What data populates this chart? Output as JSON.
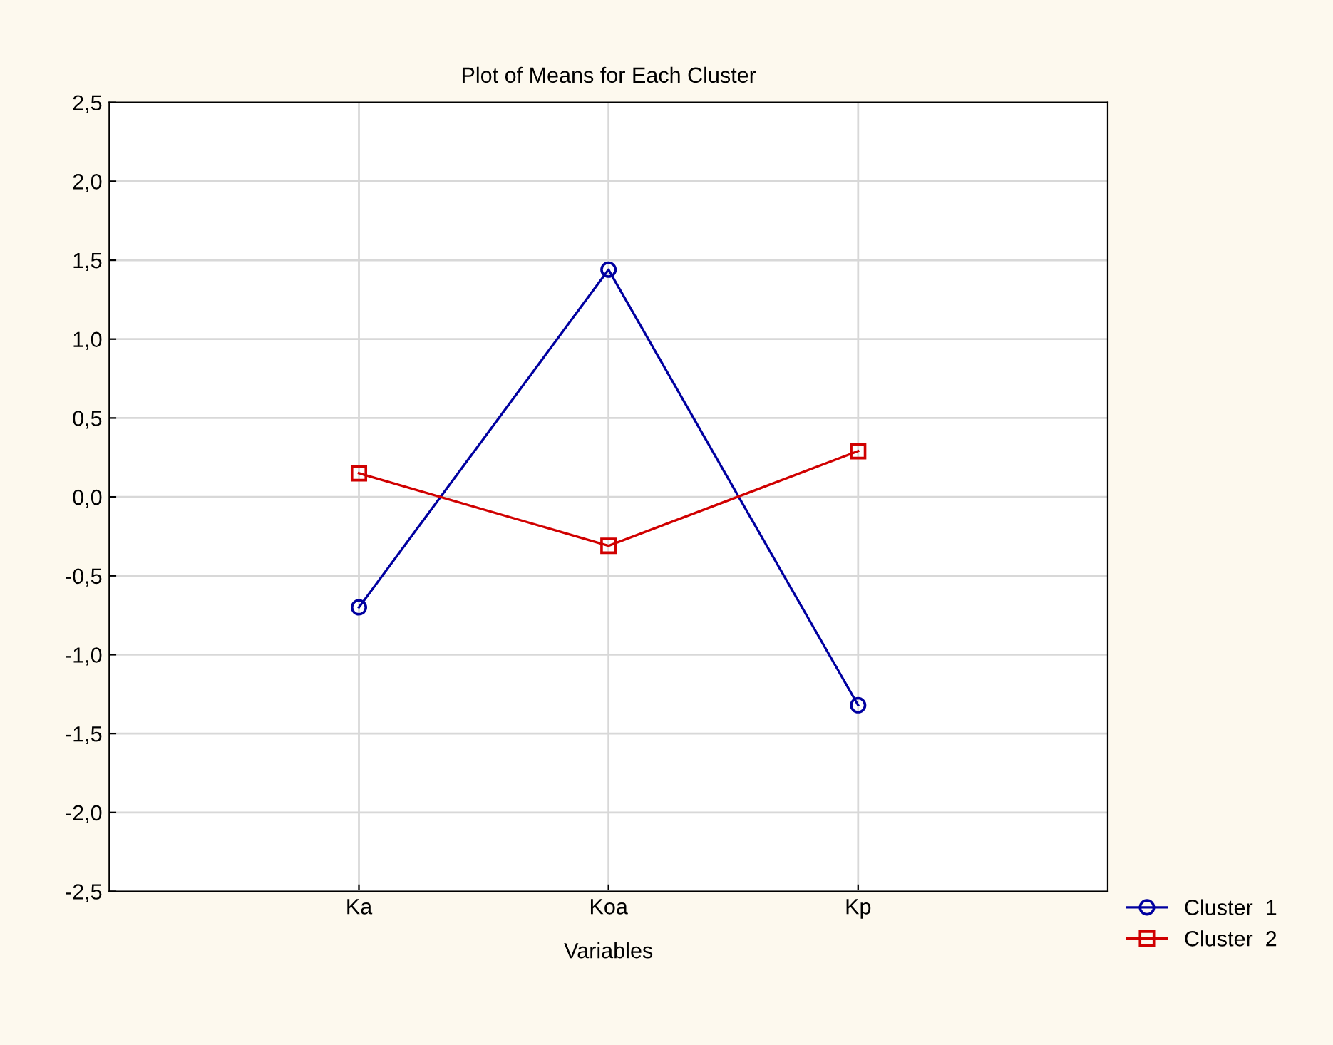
{
  "chart_data": {
    "type": "line",
    "title": "Plot of Means for Each Cluster",
    "xlabel": "Variables",
    "categories": [
      "Ka",
      "Koa",
      "Kp"
    ],
    "series": [
      {
        "name": "Cluster  1",
        "color": "#0000a0",
        "values": [
          -0.7,
          1.44,
          -1.32
        ],
        "marker": "circle"
      },
      {
        "name": "Cluster  2",
        "color": "#d00000",
        "values": [
          0.15,
          -0.31,
          0.29
        ],
        "marker": "square"
      }
    ],
    "ylim": [
      -2.5,
      2.5
    ],
    "yticks": [
      {
        "value": -2.5,
        "label": "-2,5"
      },
      {
        "value": -2.0,
        "label": "-2,0"
      },
      {
        "value": -1.5,
        "label": "-1,5"
      },
      {
        "value": -1.0,
        "label": "-1,0"
      },
      {
        "value": -0.5,
        "label": "-0,5"
      },
      {
        "value": 0.0,
        "label": "0,0"
      },
      {
        "value": 0.5,
        "label": "0,5"
      },
      {
        "value": 1.0,
        "label": "1,0"
      },
      {
        "value": 1.5,
        "label": "1,5"
      },
      {
        "value": 2.0,
        "label": "2,0"
      },
      {
        "value": 2.5,
        "label": "2,5"
      }
    ],
    "grid": true,
    "legend": "bottom right",
    "line_style": "solid"
  }
}
